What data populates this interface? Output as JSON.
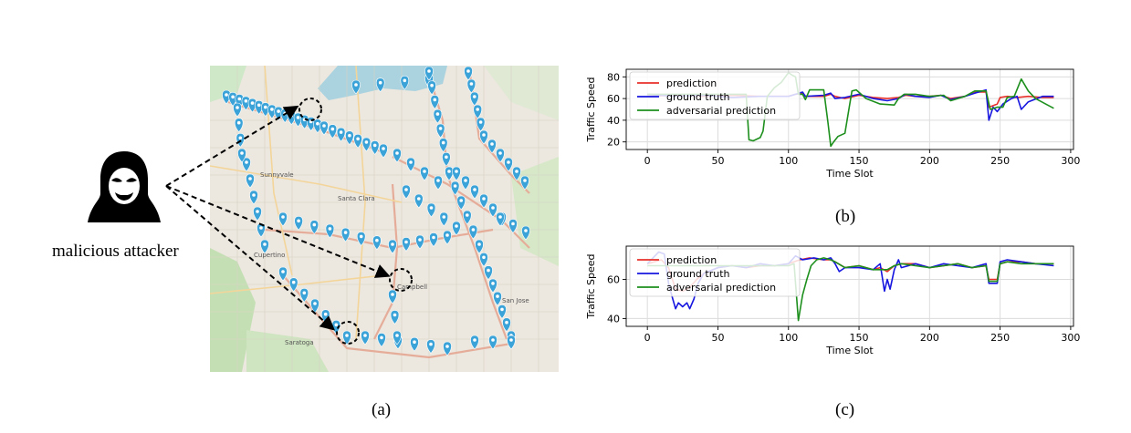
{
  "figure": {
    "captions": {
      "a": "(a)",
      "b": "(b)",
      "c": "(c)"
    },
    "attacker": {
      "label": "malicious attacker",
      "icon": "hacker-icon"
    },
    "map": {
      "place_labels": [
        "Sunnyvale",
        "Santa Clara",
        "Cupertino",
        "Campbell",
        "Saratoga",
        "San Jose"
      ],
      "marker_icon": "location-pin-icon",
      "marker_color": "#3ba3d8",
      "road_color": "#e3a7a0",
      "target_markers": 3
    }
  },
  "colors": {
    "prediction": "#e8312a",
    "ground_truth": "#1616e0",
    "adversarial": "#1d8f1d"
  },
  "chart_data": [
    {
      "type": "line",
      "panel": "b",
      "xlabel": "Time Slot",
      "ylabel": "Traffic Speed",
      "xlim": [
        -15,
        302
      ],
      "ylim": [
        13,
        87
      ],
      "xticks": [
        0,
        50,
        100,
        150,
        200,
        250,
        300
      ],
      "yticks": [
        20,
        40,
        60,
        80
      ],
      "grid": true,
      "legend_position": "top-left",
      "series": [
        {
          "name": "prediction",
          "color": "#e8312a",
          "x": [
            0,
            20,
            40,
            60,
            80,
            100,
            105,
            110,
            112,
            125,
            130,
            133,
            140,
            150,
            160,
            170,
            178,
            183,
            190,
            200,
            208,
            215,
            225,
            232,
            240,
            242,
            248,
            250,
            255,
            262,
            270,
            280,
            288
          ],
          "y": [
            62,
            63,
            62,
            63,
            62,
            62,
            64,
            65,
            62,
            62,
            64,
            62,
            60,
            63,
            61,
            60,
            61,
            63,
            62,
            62,
            63,
            60,
            62,
            66,
            66,
            52,
            55,
            61,
            62,
            61,
            62,
            61,
            61
          ]
        },
        {
          "name": "ground truth",
          "color": "#1616e0",
          "x": [
            0,
            20,
            40,
            60,
            80,
            100,
            105,
            110,
            112,
            125,
            130,
            133,
            140,
            150,
            160,
            170,
            178,
            183,
            190,
            200,
            208,
            215,
            225,
            232,
            240,
            242,
            245,
            248,
            252,
            258,
            262,
            265,
            270,
            280,
            288
          ],
          "y": [
            64,
            62,
            63,
            61,
            62,
            62,
            64,
            66,
            62,
            63,
            65,
            60,
            61,
            64,
            60,
            58,
            60,
            64,
            62,
            61,
            63,
            59,
            62,
            65,
            68,
            40,
            52,
            48,
            55,
            60,
            62,
            50,
            57,
            62,
            62
          ]
        },
        {
          "name": "adversarial prediction",
          "color": "#1d8f1d",
          "x": [
            0,
            20,
            40,
            60,
            70,
            72,
            75,
            80,
            82,
            85,
            90,
            95,
            100,
            102,
            105,
            107,
            110,
            112,
            115,
            125,
            128,
            130,
            132,
            135,
            140,
            145,
            148,
            155,
            165,
            175,
            178,
            182,
            190,
            200,
            210,
            215,
            225,
            232,
            240,
            243,
            248,
            252,
            255,
            260,
            265,
            270,
            275,
            288
          ],
          "y": [
            64,
            64,
            64,
            64,
            64,
            22,
            21,
            24,
            30,
            62,
            70,
            75,
            84,
            82,
            80,
            64,
            64,
            59,
            68,
            68,
            38,
            16,
            20,
            25,
            28,
            67,
            68,
            60,
            55,
            54,
            60,
            64,
            64,
            62,
            63,
            58,
            62,
            67,
            67,
            50,
            52,
            52,
            61,
            62,
            78,
            67,
            60,
            51
          ]
        }
      ]
    },
    {
      "type": "line",
      "panel": "c",
      "xlabel": "Time Slot",
      "ylabel": "Traffic Speed",
      "xlim": [
        -15,
        302
      ],
      "ylim": [
        36,
        77
      ],
      "xticks": [
        0,
        50,
        100,
        150,
        200,
        250,
        300
      ],
      "yticks": [
        40,
        60
      ],
      "grid": true,
      "legend_position": "top-left",
      "series": [
        {
          "name": "prediction",
          "color": "#e8312a",
          "x": [
            0,
            10,
            15,
            20,
            25,
            30,
            35,
            40,
            50,
            60,
            70,
            80,
            90,
            100,
            108,
            115,
            125,
            130,
            133,
            140,
            150,
            160,
            165,
            170,
            175,
            180,
            190,
            200,
            210,
            220,
            230,
            240,
            242,
            248,
            250,
            255,
            265,
            275,
            288
          ],
          "y": [
            68,
            70,
            66,
            55,
            54,
            56,
            60,
            63,
            66,
            67,
            66,
            67,
            67,
            68,
            70,
            71,
            70,
            70,
            69,
            66,
            67,
            65,
            66,
            64,
            67,
            68,
            68,
            66,
            67,
            68,
            66,
            67,
            60,
            60,
            68,
            69,
            69,
            68,
            68
          ]
        },
        {
          "name": "ground truth",
          "color": "#1616e0",
          "x": [
            0,
            8,
            12,
            15,
            18,
            20,
            22,
            25,
            28,
            30,
            33,
            36,
            40,
            50,
            60,
            70,
            80,
            90,
            100,
            105,
            110,
            118,
            125,
            130,
            133,
            136,
            140,
            150,
            160,
            165,
            168,
            170,
            172,
            175,
            178,
            180,
            190,
            200,
            210,
            220,
            230,
            240,
            242,
            248,
            250,
            255,
            265,
            275,
            288
          ],
          "y": [
            68,
            74,
            73,
            58,
            50,
            45,
            48,
            46,
            48,
            45,
            50,
            58,
            63,
            66,
            67,
            66,
            68,
            67,
            68,
            72,
            70,
            71,
            70,
            71,
            68,
            64,
            66,
            66,
            65,
            68,
            54,
            60,
            55,
            65,
            70,
            66,
            68,
            66,
            68,
            67,
            66,
            68,
            58,
            58,
            69,
            70,
            69,
            68,
            67
          ]
        },
        {
          "name": "adversarial prediction",
          "color": "#1d8f1d",
          "x": [
            0,
            50,
            100,
            104,
            107,
            110,
            113,
            116,
            120,
            125,
            130,
            133,
            140,
            150,
            160,
            170,
            175,
            180,
            190,
            200,
            210,
            220,
            230,
            240,
            242,
            248,
            250,
            255,
            265,
            275,
            288
          ],
          "y": [
            67,
            67,
            67,
            68,
            39,
            52,
            60,
            67,
            70,
            71,
            70,
            69,
            66,
            67,
            65,
            65,
            67,
            68,
            67,
            66,
            67,
            68,
            66,
            67,
            59,
            59,
            68,
            69,
            68,
            68,
            68
          ]
        }
      ]
    }
  ]
}
